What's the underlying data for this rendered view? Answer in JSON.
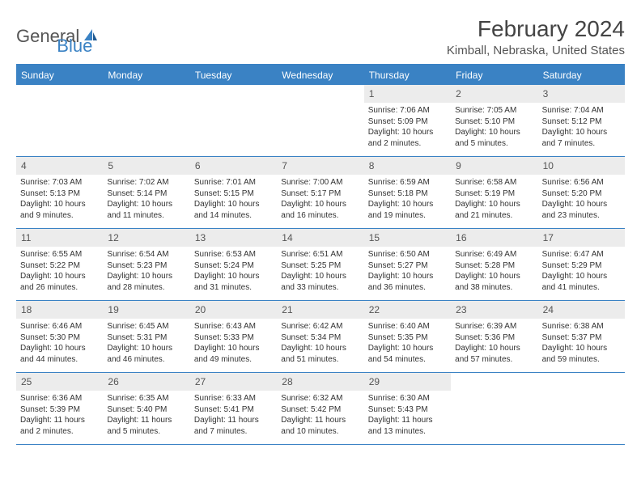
{
  "logo": {
    "word1": "General",
    "word2": "Blue"
  },
  "title": "February 2024",
  "location": "Kimball, Nebraska, United States",
  "colors": {
    "accent": "#3a82c4",
    "header_bg": "#3a82c4",
    "daynum_bg": "#ececec",
    "text": "#333333",
    "background": "#ffffff"
  },
  "weekdays": [
    "Sunday",
    "Monday",
    "Tuesday",
    "Wednesday",
    "Thursday",
    "Friday",
    "Saturday"
  ],
  "weeks": [
    [
      {
        "n": "",
        "sunrise": "",
        "sunset": "",
        "daylight": ""
      },
      {
        "n": "",
        "sunrise": "",
        "sunset": "",
        "daylight": ""
      },
      {
        "n": "",
        "sunrise": "",
        "sunset": "",
        "daylight": ""
      },
      {
        "n": "",
        "sunrise": "",
        "sunset": "",
        "daylight": ""
      },
      {
        "n": "1",
        "sunrise": "Sunrise: 7:06 AM",
        "sunset": "Sunset: 5:09 PM",
        "daylight": "Daylight: 10 hours and 2 minutes."
      },
      {
        "n": "2",
        "sunrise": "Sunrise: 7:05 AM",
        "sunset": "Sunset: 5:10 PM",
        "daylight": "Daylight: 10 hours and 5 minutes."
      },
      {
        "n": "3",
        "sunrise": "Sunrise: 7:04 AM",
        "sunset": "Sunset: 5:12 PM",
        "daylight": "Daylight: 10 hours and 7 minutes."
      }
    ],
    [
      {
        "n": "4",
        "sunrise": "Sunrise: 7:03 AM",
        "sunset": "Sunset: 5:13 PM",
        "daylight": "Daylight: 10 hours and 9 minutes."
      },
      {
        "n": "5",
        "sunrise": "Sunrise: 7:02 AM",
        "sunset": "Sunset: 5:14 PM",
        "daylight": "Daylight: 10 hours and 11 minutes."
      },
      {
        "n": "6",
        "sunrise": "Sunrise: 7:01 AM",
        "sunset": "Sunset: 5:15 PM",
        "daylight": "Daylight: 10 hours and 14 minutes."
      },
      {
        "n": "7",
        "sunrise": "Sunrise: 7:00 AM",
        "sunset": "Sunset: 5:17 PM",
        "daylight": "Daylight: 10 hours and 16 minutes."
      },
      {
        "n": "8",
        "sunrise": "Sunrise: 6:59 AM",
        "sunset": "Sunset: 5:18 PM",
        "daylight": "Daylight: 10 hours and 19 minutes."
      },
      {
        "n": "9",
        "sunrise": "Sunrise: 6:58 AM",
        "sunset": "Sunset: 5:19 PM",
        "daylight": "Daylight: 10 hours and 21 minutes."
      },
      {
        "n": "10",
        "sunrise": "Sunrise: 6:56 AM",
        "sunset": "Sunset: 5:20 PM",
        "daylight": "Daylight: 10 hours and 23 minutes."
      }
    ],
    [
      {
        "n": "11",
        "sunrise": "Sunrise: 6:55 AM",
        "sunset": "Sunset: 5:22 PM",
        "daylight": "Daylight: 10 hours and 26 minutes."
      },
      {
        "n": "12",
        "sunrise": "Sunrise: 6:54 AM",
        "sunset": "Sunset: 5:23 PM",
        "daylight": "Daylight: 10 hours and 28 minutes."
      },
      {
        "n": "13",
        "sunrise": "Sunrise: 6:53 AM",
        "sunset": "Sunset: 5:24 PM",
        "daylight": "Daylight: 10 hours and 31 minutes."
      },
      {
        "n": "14",
        "sunrise": "Sunrise: 6:51 AM",
        "sunset": "Sunset: 5:25 PM",
        "daylight": "Daylight: 10 hours and 33 minutes."
      },
      {
        "n": "15",
        "sunrise": "Sunrise: 6:50 AM",
        "sunset": "Sunset: 5:27 PM",
        "daylight": "Daylight: 10 hours and 36 minutes."
      },
      {
        "n": "16",
        "sunrise": "Sunrise: 6:49 AM",
        "sunset": "Sunset: 5:28 PM",
        "daylight": "Daylight: 10 hours and 38 minutes."
      },
      {
        "n": "17",
        "sunrise": "Sunrise: 6:47 AM",
        "sunset": "Sunset: 5:29 PM",
        "daylight": "Daylight: 10 hours and 41 minutes."
      }
    ],
    [
      {
        "n": "18",
        "sunrise": "Sunrise: 6:46 AM",
        "sunset": "Sunset: 5:30 PM",
        "daylight": "Daylight: 10 hours and 44 minutes."
      },
      {
        "n": "19",
        "sunrise": "Sunrise: 6:45 AM",
        "sunset": "Sunset: 5:31 PM",
        "daylight": "Daylight: 10 hours and 46 minutes."
      },
      {
        "n": "20",
        "sunrise": "Sunrise: 6:43 AM",
        "sunset": "Sunset: 5:33 PM",
        "daylight": "Daylight: 10 hours and 49 minutes."
      },
      {
        "n": "21",
        "sunrise": "Sunrise: 6:42 AM",
        "sunset": "Sunset: 5:34 PM",
        "daylight": "Daylight: 10 hours and 51 minutes."
      },
      {
        "n": "22",
        "sunrise": "Sunrise: 6:40 AM",
        "sunset": "Sunset: 5:35 PM",
        "daylight": "Daylight: 10 hours and 54 minutes."
      },
      {
        "n": "23",
        "sunrise": "Sunrise: 6:39 AM",
        "sunset": "Sunset: 5:36 PM",
        "daylight": "Daylight: 10 hours and 57 minutes."
      },
      {
        "n": "24",
        "sunrise": "Sunrise: 6:38 AM",
        "sunset": "Sunset: 5:37 PM",
        "daylight": "Daylight: 10 hours and 59 minutes."
      }
    ],
    [
      {
        "n": "25",
        "sunrise": "Sunrise: 6:36 AM",
        "sunset": "Sunset: 5:39 PM",
        "daylight": "Daylight: 11 hours and 2 minutes."
      },
      {
        "n": "26",
        "sunrise": "Sunrise: 6:35 AM",
        "sunset": "Sunset: 5:40 PM",
        "daylight": "Daylight: 11 hours and 5 minutes."
      },
      {
        "n": "27",
        "sunrise": "Sunrise: 6:33 AM",
        "sunset": "Sunset: 5:41 PM",
        "daylight": "Daylight: 11 hours and 7 minutes."
      },
      {
        "n": "28",
        "sunrise": "Sunrise: 6:32 AM",
        "sunset": "Sunset: 5:42 PM",
        "daylight": "Daylight: 11 hours and 10 minutes."
      },
      {
        "n": "29",
        "sunrise": "Sunrise: 6:30 AM",
        "sunset": "Sunset: 5:43 PM",
        "daylight": "Daylight: 11 hours and 13 minutes."
      },
      {
        "n": "",
        "sunrise": "",
        "sunset": "",
        "daylight": ""
      },
      {
        "n": "",
        "sunrise": "",
        "sunset": "",
        "daylight": ""
      }
    ]
  ]
}
